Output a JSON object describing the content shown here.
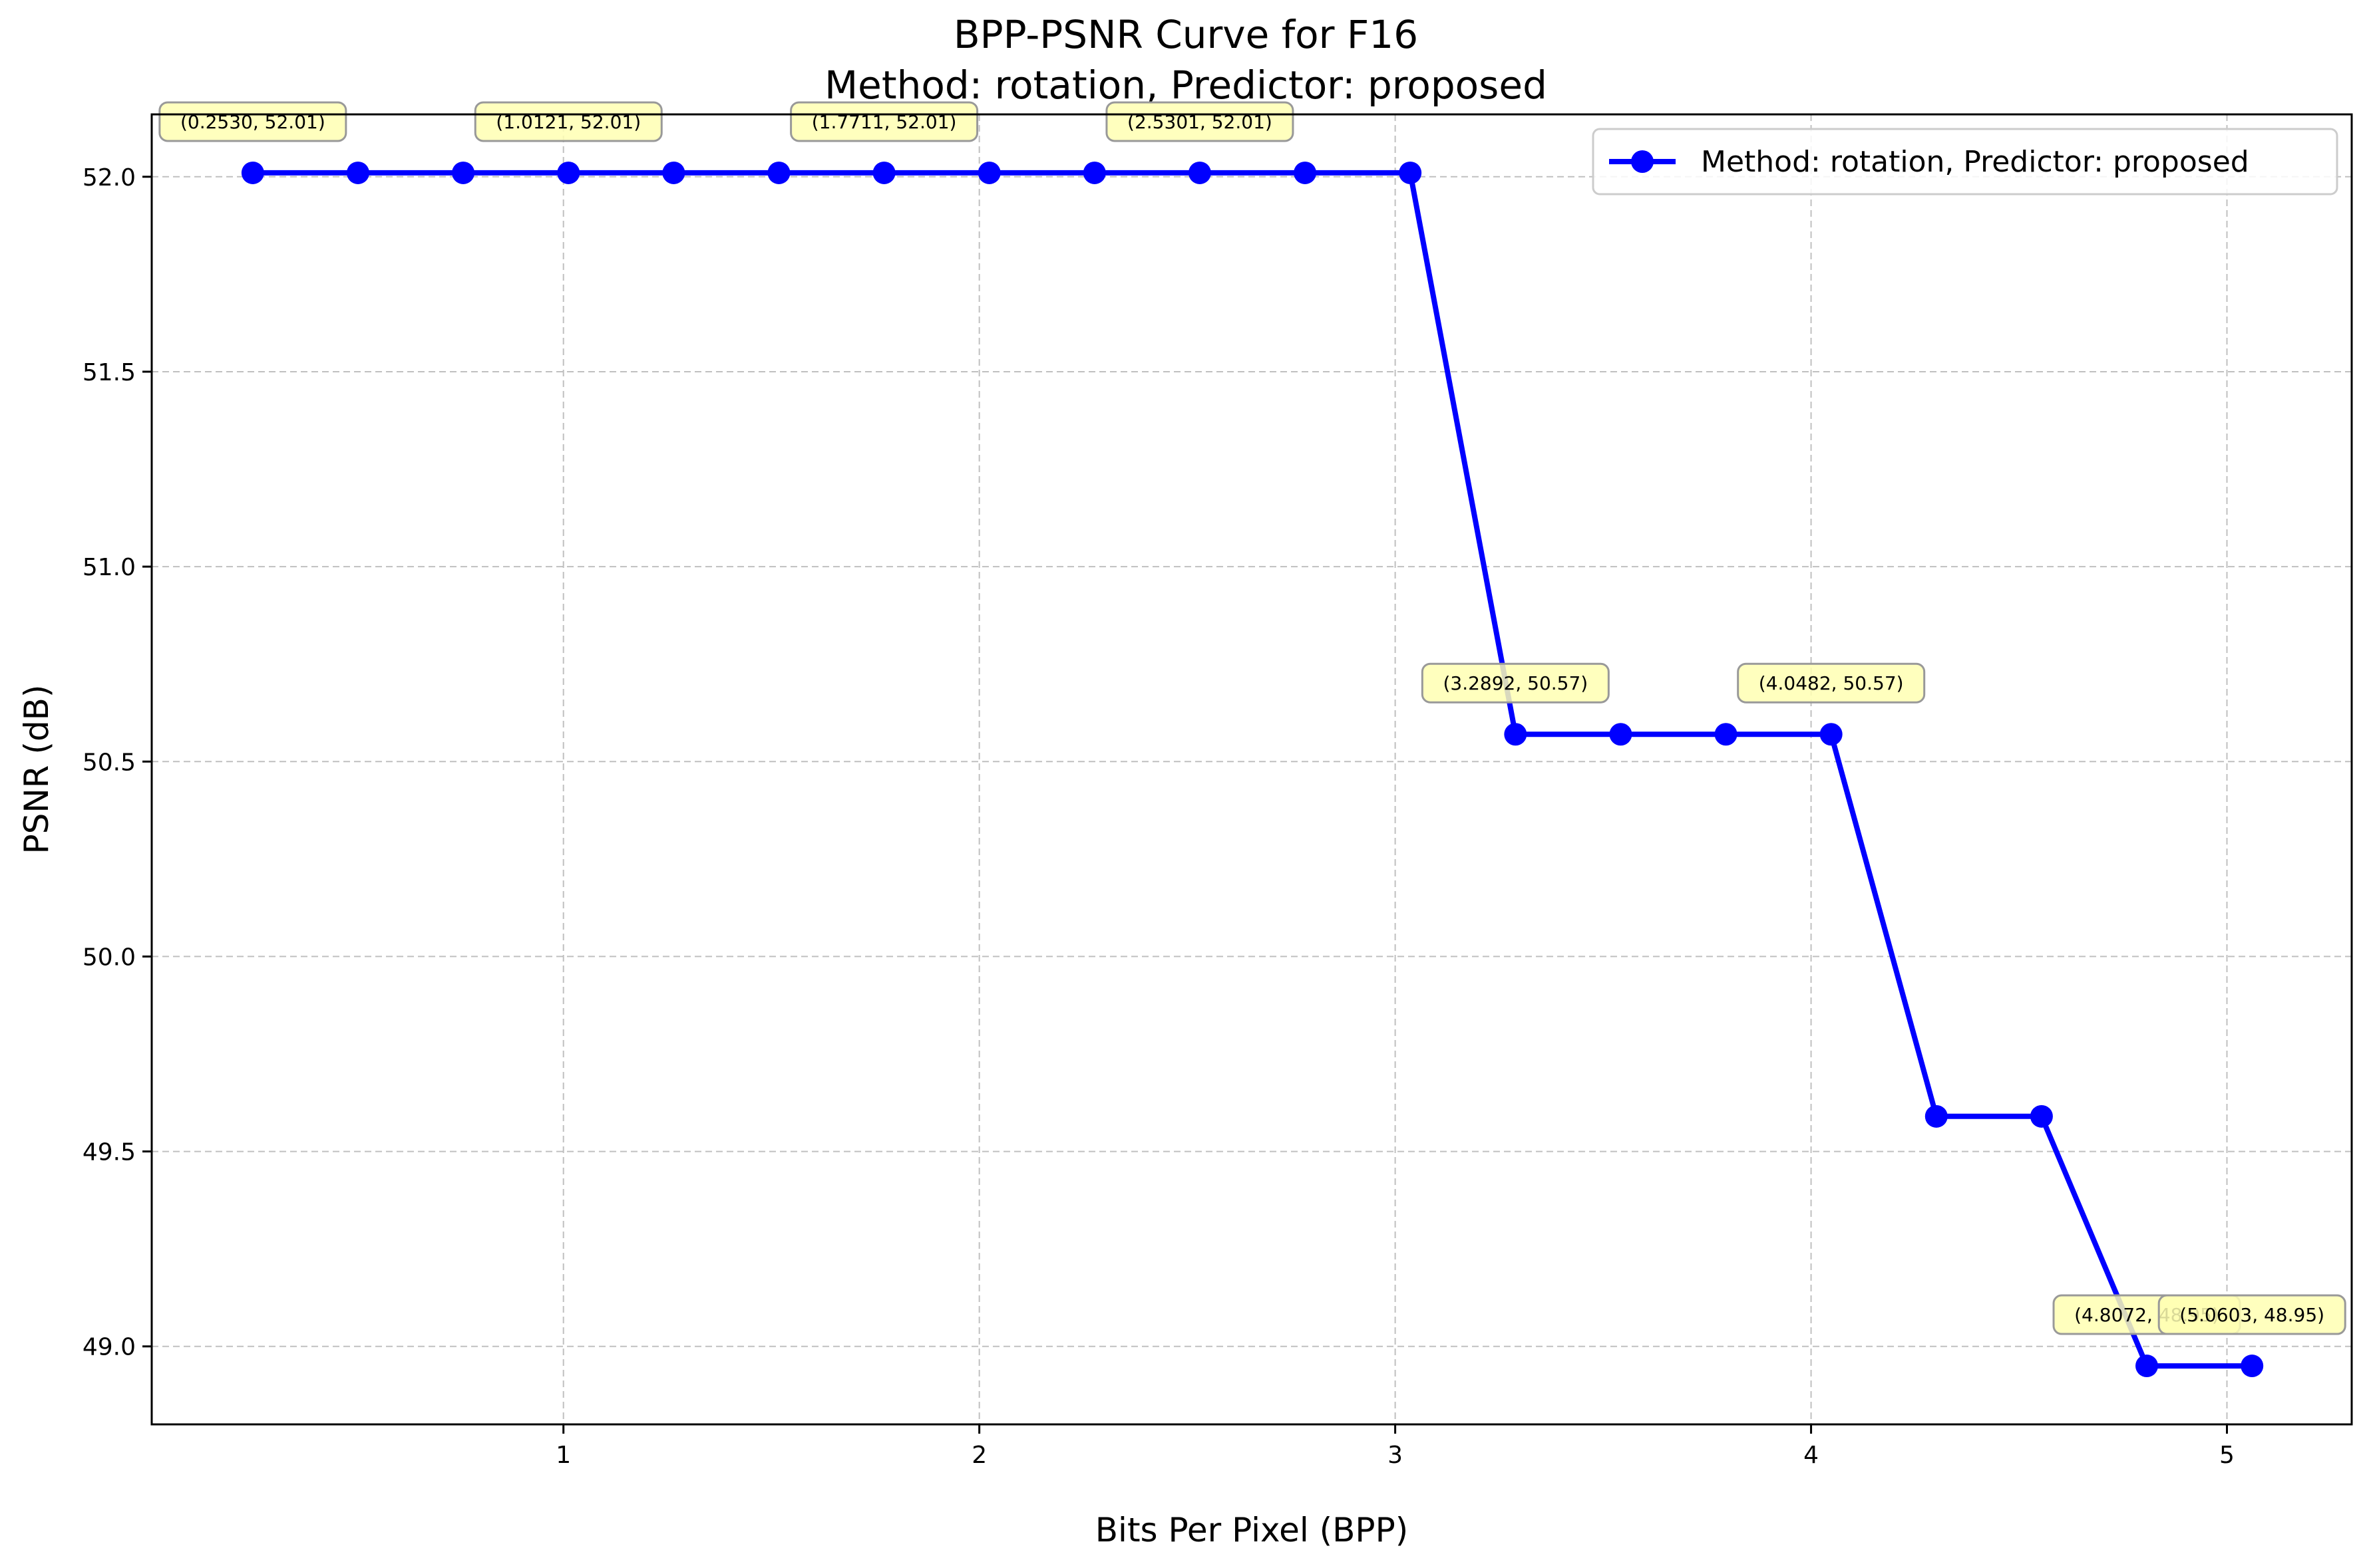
{
  "chart_data": {
    "type": "line",
    "title_lines": [
      "BPP-PSNR Curve for F16",
      "Method: rotation, Predictor: proposed"
    ],
    "xlabel": "Bits Per Pixel (BPP)",
    "ylabel": "PSNR (dB)",
    "xlim": [
      0.01,
      5.3
    ],
    "ylim": [
      48.8,
      52.16
    ],
    "x_ticks": [
      1,
      2,
      3,
      4,
      5
    ],
    "x_tick_labels": [
      "1",
      "2",
      "3",
      "4",
      "5"
    ],
    "y_ticks": [
      49.0,
      49.5,
      50.0,
      50.5,
      51.0,
      51.5,
      52.0
    ],
    "y_tick_labels": [
      "49.0",
      "49.5",
      "50.0",
      "50.5",
      "51.0",
      "51.5",
      "52.0"
    ],
    "grid": true,
    "legend_position": "top-right",
    "series": [
      {
        "name": "Method: rotation, Predictor: proposed",
        "color": "#0000ff",
        "marker": "circle",
        "x": [
          0.253,
          0.506,
          0.759,
          1.0121,
          1.2651,
          1.5181,
          1.7711,
          2.0241,
          2.2771,
          2.5301,
          2.7831,
          3.0361,
          3.2892,
          3.5422,
          3.7952,
          4.0482,
          4.3012,
          4.5542,
          4.8072,
          5.0603
        ],
        "y": [
          52.01,
          52.01,
          52.01,
          52.01,
          52.01,
          52.01,
          52.01,
          52.01,
          52.01,
          52.01,
          52.01,
          52.01,
          50.57,
          50.57,
          50.57,
          50.57,
          49.59,
          49.59,
          48.95,
          48.95
        ]
      }
    ],
    "annotations": [
      {
        "x": 0.253,
        "y": 52.01,
        "text": "(0.2530, 52.01)"
      },
      {
        "x": 1.0121,
        "y": 52.01,
        "text": "(1.0121, 52.01)"
      },
      {
        "x": 1.7711,
        "y": 52.01,
        "text": "(1.7711, 52.01)"
      },
      {
        "x": 2.5301,
        "y": 52.01,
        "text": "(2.5301, 52.01)"
      },
      {
        "x": 3.2892,
        "y": 50.57,
        "text": "(3.2892, 50.57)"
      },
      {
        "x": 4.0482,
        "y": 50.57,
        "text": "(4.0482, 50.57)"
      },
      {
        "x": 4.8072,
        "y": 48.95,
        "text": "(4.8072, 48.95)"
      },
      {
        "x": 5.0603,
        "y": 48.95,
        "text": "(5.0603, 48.95)"
      }
    ],
    "annotation_box_color": "#ffffb3",
    "grid_color": "#b0b0b0",
    "axis_color": "#000000"
  }
}
